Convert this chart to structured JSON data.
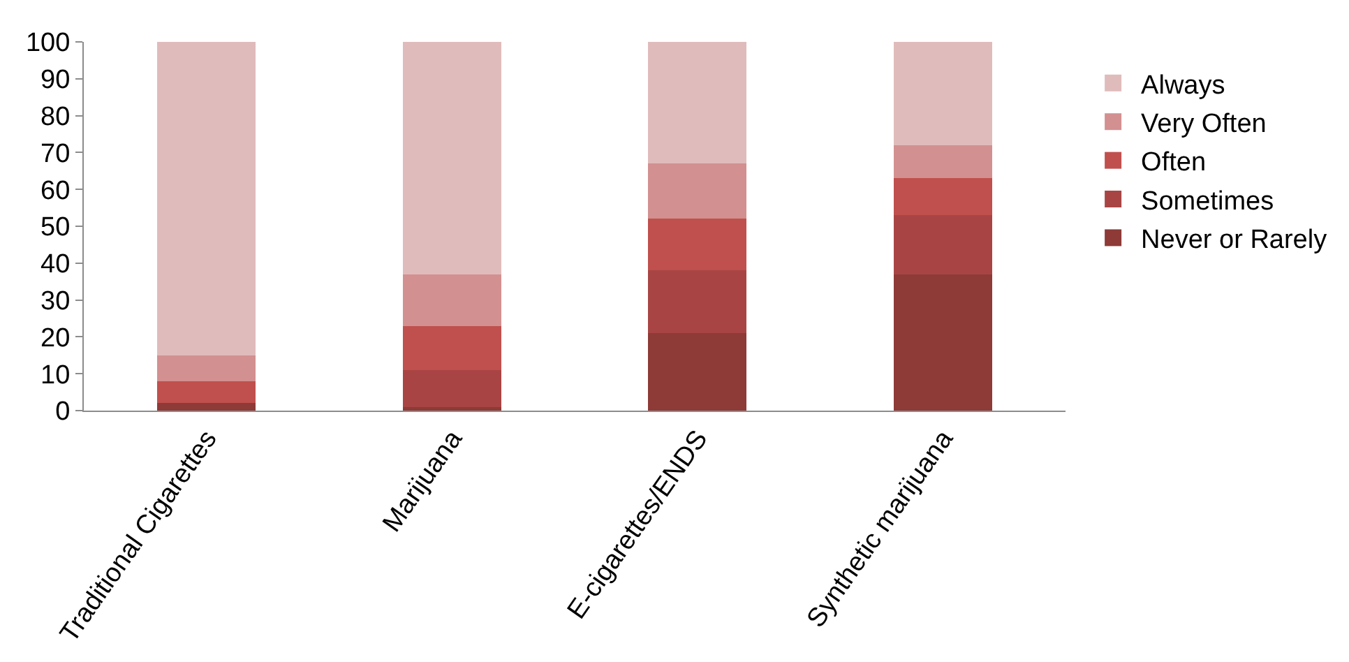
{
  "chart_data": {
    "type": "bar",
    "stacked": true,
    "categories": [
      "Traditional Cigarettes",
      "Marijuana",
      "E-cigarettes/ENDS",
      "Synthetic marijuana"
    ],
    "series": [
      {
        "name": "Never or Rarely",
        "color": "#8e3a37",
        "values": [
          2,
          1,
          21,
          37
        ]
      },
      {
        "name": "Sometimes",
        "color": "#a84544",
        "values": [
          0,
          10,
          17,
          16
        ]
      },
      {
        "name": "Often",
        "color": "#c0504d",
        "values": [
          6,
          12,
          14,
          10
        ]
      },
      {
        "name": "Very Often",
        "color": "#d39090",
        "values": [
          7,
          14,
          15,
          9
        ]
      },
      {
        "name": "Always",
        "color": "#e0bbbb",
        "values": [
          85,
          63,
          33,
          28
        ]
      }
    ],
    "ylim": [
      0,
      100
    ],
    "yticks": [
      0,
      10,
      20,
      30,
      40,
      50,
      60,
      70,
      80,
      90,
      100
    ],
    "legend": "right"
  }
}
